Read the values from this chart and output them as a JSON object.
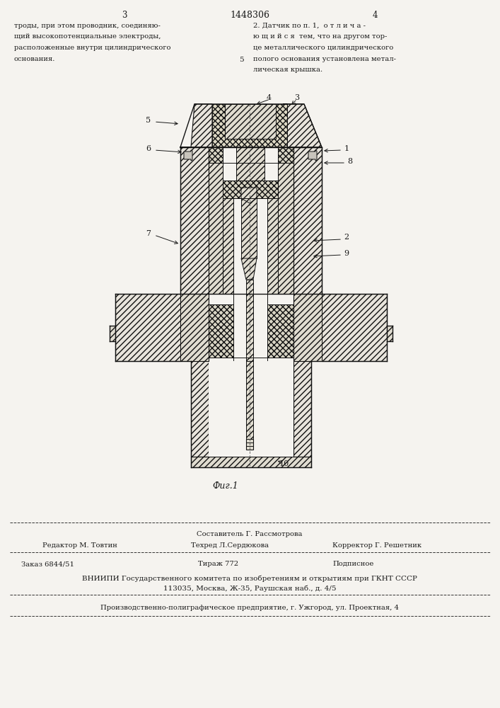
{
  "bg_color": "#f5f3ef",
  "page_number_left": "3",
  "page_number_center": "1448306",
  "page_number_right": "4",
  "text_left": "троды, при этом проводник, соединяю-\nщий высокопотенциальные электроды,\nрасположенные внутри цилиндрического\nоснования.",
  "text_right_line1": "2. Датчик по п. 1,  о т л и ч а -",
  "text_right_line2": "ю щ и й с я  тем, что на другом тор-",
  "text_right_line3": "це металлического цилиндрического",
  "text_right_line4": "полого основания установлена метал-",
  "text_right_line5": "лическая крышка.",
  "line_number_5": "5",
  "fig_caption": "Фиг.1",
  "bottom_line1_center1": "Составитель Г. Рассмотрова",
  "bottom_line1_left": "Редактор М. Товтин",
  "bottom_line1_center2": "Техред Л.Сердюкова",
  "bottom_line1_right": "Корректор Г. Решетник",
  "bottom_line2_left": "Заказ 6844/51",
  "bottom_line2_center": "Тираж 772",
  "bottom_line2_right": "Подписное",
  "bottom_line3": "ВНИИПИ Государственного комитета по изобретениям и открытиям при ГКНТ СССР",
  "bottom_line4": "113035, Москва, Ж-35, Раушская наб., д. 4/5",
  "bottom_line5": "Производственно-полиграфическое предприятие, г. Ужгород, ул. Проектная, 4",
  "text_color": "#1a1a1a",
  "line_color": "#111111"
}
